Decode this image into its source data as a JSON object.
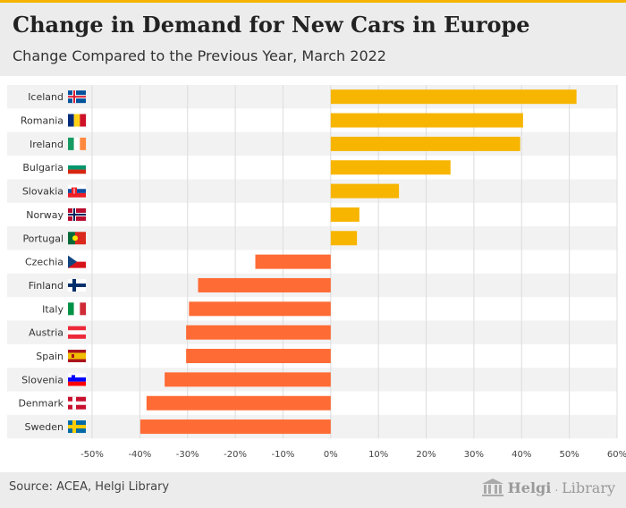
{
  "header": {
    "title": "Change in Demand for New Cars in Europe",
    "subtitle": "Change Compared to the Previous Year, March 2022"
  },
  "footer": {
    "source": "Source: ACEA, Helgi Library",
    "brand_part1": "Helgi",
    "brand_part2": "Library",
    "brand_dot": "."
  },
  "colors": {
    "positive": "#f7b500",
    "negative": "#ff6b35",
    "accent": "#f5b400",
    "row_band": "#f2f2f2"
  },
  "chart_data": {
    "type": "bar",
    "orientation": "horizontal",
    "categories": [
      "Iceland",
      "Romania",
      "Ireland",
      "Bulgaria",
      "Slovakia",
      "Norway",
      "Portugal",
      "Czechia",
      "Finland",
      "Italy",
      "Austria",
      "Spain",
      "Slovenia",
      "Denmark",
      "Sweden"
    ],
    "flags": [
      "iceland-flag-icon",
      "romania-flag-icon",
      "ireland-flag-icon",
      "bulgaria-flag-icon",
      "slovakia-flag-icon",
      "norway-flag-icon",
      "portugal-flag-icon",
      "czechia-flag-icon",
      "finland-flag-icon",
      "italy-flag-icon",
      "austria-flag-icon",
      "spain-flag-icon",
      "slovenia-flag-icon",
      "denmark-flag-icon",
      "sweden-flag-icon"
    ],
    "values": [
      51.5,
      40.3,
      39.7,
      25.1,
      14.3,
      6.0,
      5.5,
      -15.8,
      -27.8,
      -29.7,
      -30.3,
      -30.3,
      -34.8,
      -38.6,
      -39.9
    ],
    "xlim": [
      -50,
      60
    ],
    "xticks": [
      -50,
      -40,
      -30,
      -20,
      -10,
      0,
      10,
      20,
      30,
      40,
      50,
      60
    ],
    "xtick_labels": [
      "-50%",
      "-40%",
      "-30%",
      "-20%",
      "-10%",
      "0%",
      "10%",
      "20%",
      "30%",
      "40%",
      "50%",
      "60%"
    ],
    "grid": true,
    "legend": "none"
  }
}
